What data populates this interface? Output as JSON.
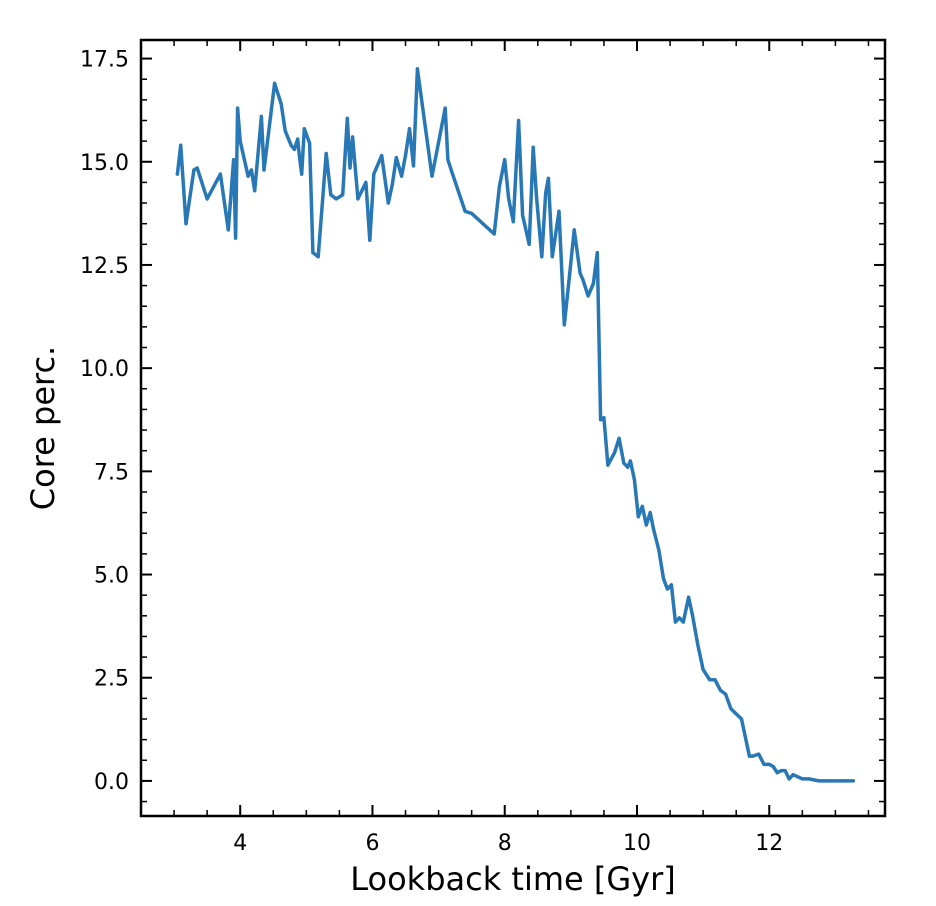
{
  "chart_data": {
    "type": "line",
    "title": "",
    "xlabel": "Lookback time [Gyr]",
    "ylabel": "Core perc.",
    "xlim": [
      2.5,
      13.75
    ],
    "ylim": [
      -0.85,
      17.95
    ],
    "xticks": [
      4,
      6,
      8,
      10,
      12
    ],
    "xtick_labels": [
      "4",
      "6",
      "8",
      "10",
      "12"
    ],
    "yticks": [
      0,
      2.5,
      5,
      7.5,
      10,
      12.5,
      15,
      17.5
    ],
    "ytick_labels": [
      "0.0",
      "2.5",
      "5.0",
      "7.5",
      "10.0",
      "12.5",
      "15.0",
      "17.5"
    ],
    "grid": false,
    "tick_direction": "in",
    "line_color": "#2878b5",
    "series": [
      {
        "x": [
          3.05,
          3.1,
          3.18,
          3.3,
          3.35,
          3.5,
          3.7,
          3.82,
          3.9,
          3.93,
          3.96,
          4.0,
          4.12,
          4.17,
          4.22,
          4.32,
          4.36,
          4.52,
          4.62,
          4.68,
          4.77,
          4.82,
          4.87,
          4.89,
          4.93,
          4.97,
          5.05,
          5.1,
          5.18,
          5.3,
          5.37,
          5.45,
          5.55,
          5.62,
          5.66,
          5.7,
          5.78,
          5.9,
          5.96,
          6.02,
          6.14,
          6.24,
          6.3,
          6.36,
          6.44,
          6.5,
          6.56,
          6.62,
          6.68,
          6.9,
          7.1,
          7.14,
          7.19,
          7.4,
          7.5,
          7.84,
          7.92,
          8.0,
          8.06,
          8.13,
          8.21,
          8.27,
          8.37,
          8.43,
          8.48,
          8.56,
          8.62,
          8.66,
          8.72,
          8.82,
          8.9,
          8.97,
          9.05,
          9.14,
          9.18,
          9.26,
          9.34,
          9.4,
          9.45,
          9.5,
          9.56,
          9.66,
          9.73,
          9.8,
          9.86,
          9.9,
          9.96,
          10.02,
          10.08,
          10.14,
          10.2,
          10.25,
          10.33,
          10.4,
          10.46,
          10.52,
          10.58,
          10.64,
          10.7,
          10.78,
          10.84,
          10.92,
          11.0,
          11.1,
          11.18,
          11.26,
          11.34,
          11.42,
          11.58,
          11.7,
          11.75,
          11.84,
          11.92,
          12.0,
          12.06,
          12.12,
          12.18,
          12.24,
          12.3,
          12.36,
          12.5,
          12.6,
          12.75,
          12.9,
          13.1,
          13.27
        ],
        "values": [
          14.7,
          15.4,
          13.5,
          14.8,
          14.85,
          14.1,
          14.7,
          13.35,
          15.05,
          13.15,
          16.3,
          15.5,
          14.65,
          14.8,
          14.3,
          16.1,
          14.8,
          16.9,
          16.4,
          15.75,
          15.4,
          15.3,
          15.55,
          15.2,
          14.7,
          15.8,
          15.45,
          12.8,
          12.7,
          15.2,
          14.2,
          14.1,
          14.2,
          16.05,
          14.85,
          15.6,
          14.1,
          14.5,
          13.1,
          14.7,
          15.15,
          14.0,
          14.45,
          15.1,
          14.65,
          15.15,
          15.8,
          14.9,
          17.25,
          14.65,
          16.3,
          15.05,
          14.8,
          13.8,
          13.75,
          13.25,
          14.4,
          15.05,
          14.1,
          13.55,
          16.0,
          13.7,
          13.0,
          15.35,
          14.15,
          12.7,
          14.25,
          14.6,
          12.7,
          13.8,
          11.05,
          12.1,
          13.35,
          12.3,
          12.15,
          11.75,
          12.05,
          12.8,
          8.75,
          8.8,
          7.65,
          7.95,
          8.3,
          7.7,
          7.6,
          7.75,
          7.3,
          6.4,
          6.65,
          6.2,
          6.5,
          6.1,
          5.6,
          4.9,
          4.65,
          4.75,
          3.85,
          3.95,
          3.85,
          4.45,
          4.0,
          3.3,
          2.7,
          2.45,
          2.45,
          2.2,
          2.1,
          1.75,
          1.5,
          0.6,
          0.6,
          0.65,
          0.4,
          0.4,
          0.35,
          0.2,
          0.25,
          0.25,
          0.05,
          0.15,
          0.05,
          0.05,
          0.0,
          0.0,
          0.0,
          0.0
        ]
      }
    ]
  }
}
